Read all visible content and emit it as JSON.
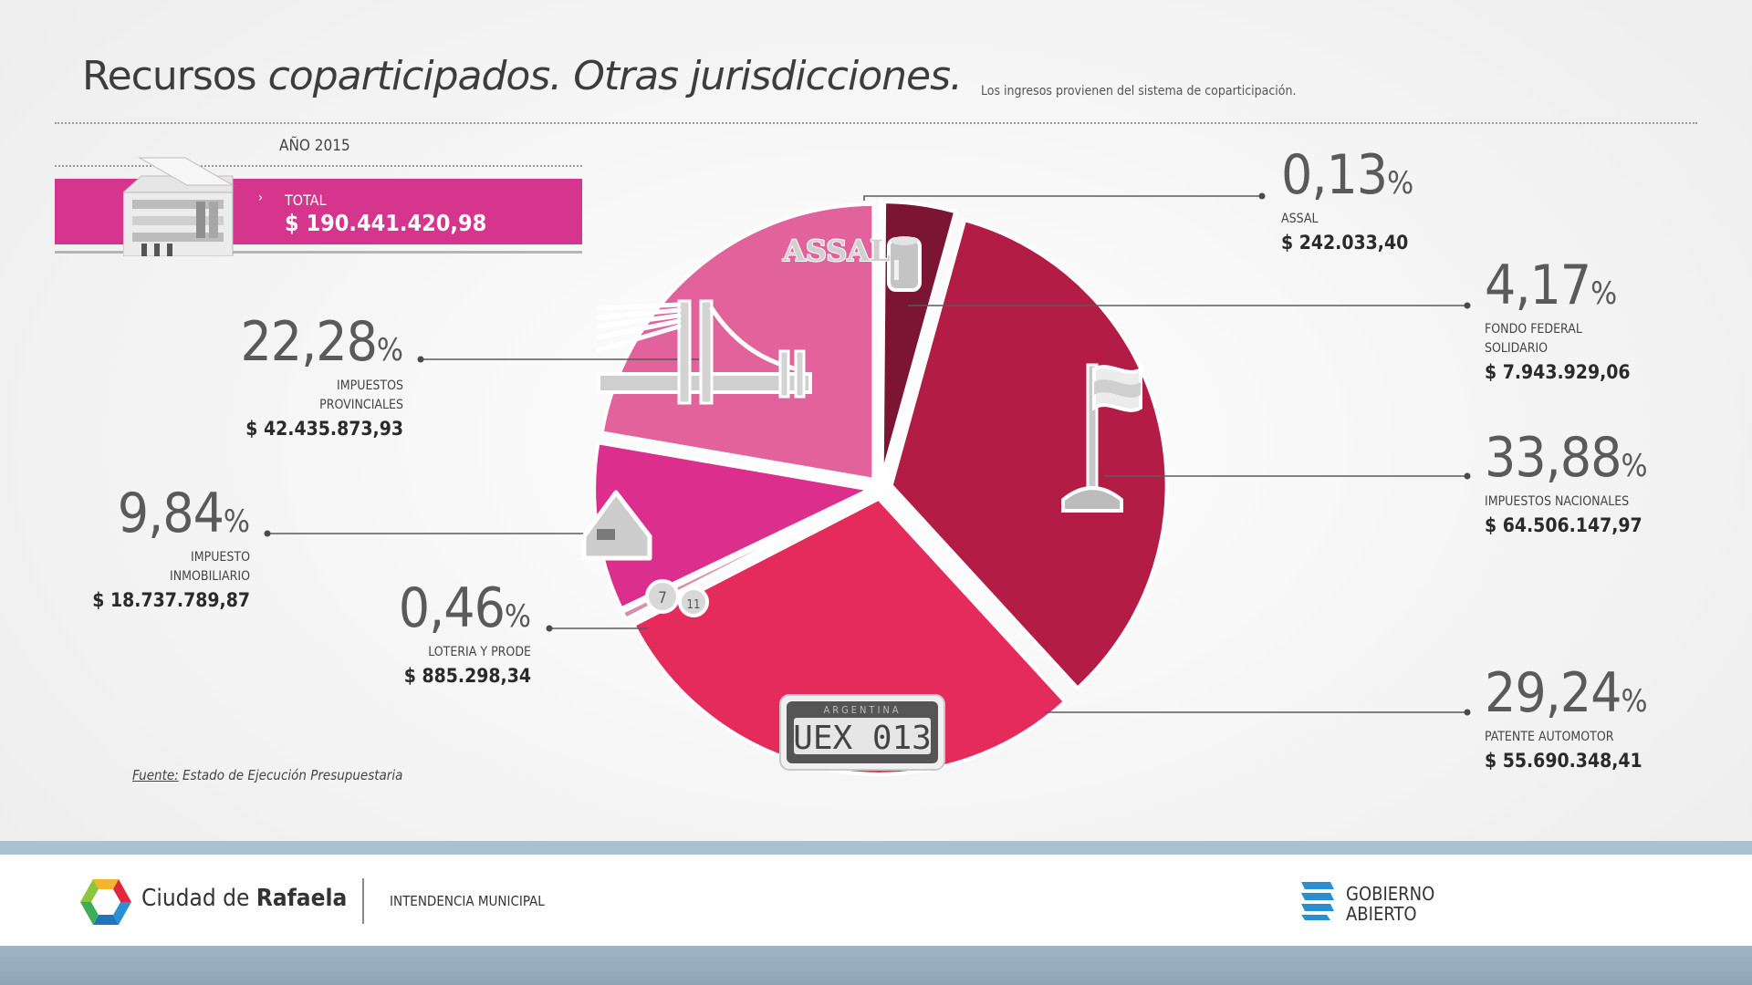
{
  "header": {
    "title_regular": "Recursos",
    "title_italic": "coparticipados. Otras jurisdicciones.",
    "subtitle": "Los ingresos provienen del sistema de coparticipación."
  },
  "summary": {
    "year_label": "AÑO 2015",
    "total_label": "TOTAL",
    "total_value": "$ 190.441.420,98",
    "chevron": "›"
  },
  "colors": {
    "accent": "#d6358d",
    "assal": "#c94a92",
    "fondo_federal": "#7b1533",
    "impuestos_nacionales": "#b31d45",
    "patente_automotor": "#e52a5c",
    "loteria_prode": "#d690ac",
    "impuesto_inmobiliario": "#dc2e8c",
    "impuestos_provinciales": "#e2629c"
  },
  "icons": {
    "assal": "water-barrel-icon",
    "fondo_federal": "flag-icon",
    "impuestos_provinciales": "bridge-icon",
    "impuesto_inmobiliario": "house-icon",
    "loteria_prode": "lottery-balls-icon",
    "patente_automotor": "license-plate-icon",
    "total": "building-icon"
  },
  "icon_text": {
    "assal_logo": "ASSAL",
    "plate_country": "ARGENTINA",
    "plate_number": "UEX 013",
    "ball_1": "7",
    "ball_2": "11"
  },
  "chart_data": {
    "type": "pie",
    "title": "Recursos coparticipados. Otras jurisdicciones.",
    "slices": [
      {
        "label": "ASSAL",
        "pct_text": "0,13",
        "value": 0.13,
        "amount": "$ 242.033,40",
        "color": "#c94a92"
      },
      {
        "label": "FONDO FEDERAL SOLIDARIO",
        "label_lines": [
          "FONDO FEDERAL",
          "SOLIDARIO"
        ],
        "pct_text": "4,17",
        "value": 4.17,
        "amount": "$ 7.943.929,06",
        "color": "#7b1533"
      },
      {
        "label": "IMPUESTOS NACIONALES",
        "pct_text": "33,88",
        "value": 33.88,
        "amount": "$ 64.506.147,97",
        "color": "#b31d45"
      },
      {
        "label": "PATENTE AUTOMOTOR",
        "pct_text": "29,24",
        "value": 29.24,
        "amount": "$ 55.690.348,41",
        "color": "#e52a5c"
      },
      {
        "label": "LOTERIA Y PRODE",
        "pct_text": "0,46",
        "value": 0.46,
        "amount": "$ 885.298,34",
        "color": "#d690ac"
      },
      {
        "label": "IMPUESTO INMOBILIARIO",
        "label_lines": [
          "IMPUESTO",
          "INMOBILIARIO"
        ],
        "pct_text": "9,84",
        "value": 9.84,
        "amount": "$ 18.737.789,87",
        "color": "#dc2e8c"
      },
      {
        "label": "IMPUESTOS PROVINCIALES",
        "label_lines": [
          "IMPUESTOS",
          "PROVINCIALES"
        ],
        "pct_text": "22,28",
        "value": 22.28,
        "amount": "$ 42.435.873,93",
        "color": "#e2629c"
      }
    ],
    "percent_symbol": "%",
    "total": "$ 190.441.420,98",
    "year": "2015"
  },
  "source": {
    "label": "Fuente:",
    "text": "Estado de Ejecución Presupuestaria"
  },
  "footer": {
    "city_regular": "Ciudad de",
    "city_bold": "Rafaela",
    "intendencia": "INTENDENCIA MUNICIPAL",
    "ga_line1": "GOBIERNO",
    "ga_line2": "ABIERTO"
  }
}
